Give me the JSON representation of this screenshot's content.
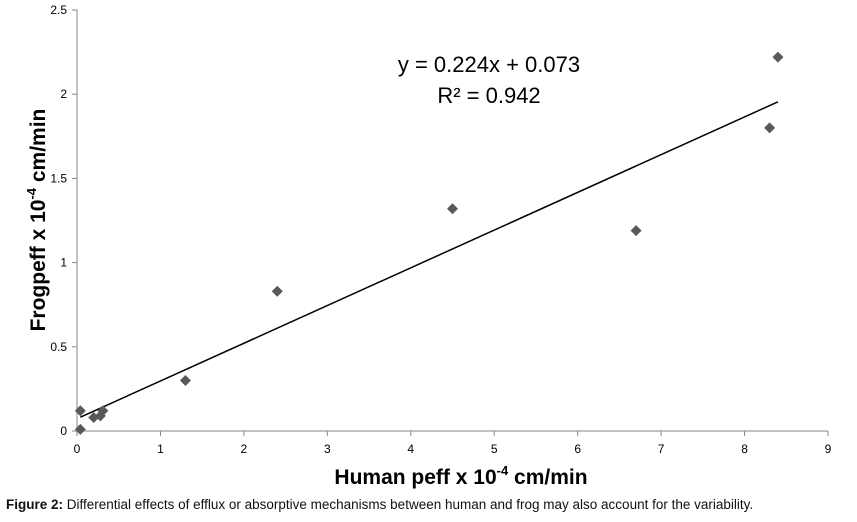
{
  "chart_data": {
    "type": "scatter",
    "xlabel": "Human peff x 10",
    "xlabel_sup": "-4",
    "xlabel_unit": " cm/min",
    "ylabel": "Frogpeff x 10",
    "ylabel_sup": "-4",
    "ylabel_unit": " cm/min",
    "xlim": [
      0,
      9
    ],
    "ylim": [
      0,
      2.5
    ],
    "xticks": [
      "0",
      "1",
      "2",
      "3",
      "4",
      "5",
      "6",
      "7",
      "8",
      "9"
    ],
    "yticks": [
      "0",
      "0.5",
      "1",
      "1.5",
      "2",
      "2.5"
    ],
    "grid": false,
    "points": [
      {
        "x": 0.04,
        "y": 0.12
      },
      {
        "x": 0.04,
        "y": 0.01
      },
      {
        "x": 0.2,
        "y": 0.08
      },
      {
        "x": 0.28,
        "y": 0.09
      },
      {
        "x": 0.31,
        "y": 0.12
      },
      {
        "x": 1.3,
        "y": 0.3
      },
      {
        "x": 2.4,
        "y": 0.83
      },
      {
        "x": 4.5,
        "y": 1.32
      },
      {
        "x": 6.7,
        "y": 1.19
      },
      {
        "x": 8.3,
        "y": 1.8
      },
      {
        "x": 8.4,
        "y": 2.22
      }
    ],
    "trendline": {
      "slope": 0.224,
      "intercept": 0.073,
      "x_range": [
        0.04,
        8.4
      ]
    },
    "equation": "y = 0.224x + 0.073",
    "r_squared": "R² = 0.942",
    "marker_color": "#595959"
  },
  "caption": {
    "label": "Figure 2:",
    "text": " Differential effects of efflux or absorptive mechanisms between human and frog may also account for the variability."
  }
}
